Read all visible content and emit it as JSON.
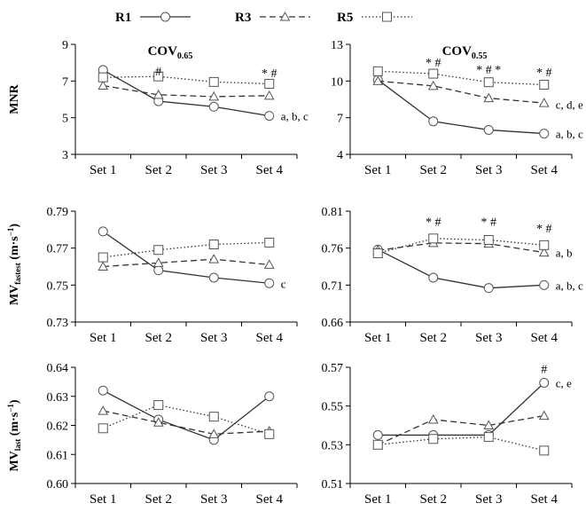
{
  "legend": [
    {
      "label": "R1",
      "style": "solid",
      "marker": "circle"
    },
    {
      "label": "R3",
      "style": "dashed",
      "marker": "triangle"
    },
    {
      "label": "R5",
      "style": "dotted",
      "marker": "square"
    }
  ],
  "column_titles": [
    {
      "main": "COV",
      "sub": "0.65"
    },
    {
      "main": "COV",
      "sub": "0.55"
    }
  ],
  "row_labels": [
    {
      "main": "MNR",
      "sub": "",
      "tail": ""
    },
    {
      "main": "MV",
      "sub": "fastest",
      "tail": " (m·s",
      "sup": "−1",
      "end": ")"
    },
    {
      "main": "MV",
      "sub": "last",
      "tail": " (m·s",
      "sup": "−1",
      "end": ")"
    }
  ],
  "chart_data": [
    {
      "type": "line",
      "id": "mnr-065",
      "row": 0,
      "col": 0,
      "categories": [
        "Set 1",
        "Set 2",
        "Set 3",
        "Set 4"
      ],
      "ylim": [
        3,
        9
      ],
      "yticks": [
        "3",
        "5",
        "7",
        "9"
      ],
      "series": [
        {
          "name": "R1",
          "values": [
            7.6,
            5.9,
            5.6,
            5.1
          ]
        },
        {
          "name": "R3",
          "values": [
            6.75,
            6.25,
            6.15,
            6.2
          ]
        },
        {
          "name": "R5",
          "values": [
            7.2,
            7.25,
            6.95,
            6.85
          ]
        }
      ],
      "annotations": [
        {
          "index": 1,
          "value": 7.3,
          "text": "#"
        },
        {
          "index": 3,
          "value": 7.2,
          "text": "* #"
        }
      ],
      "end_label": {
        "value": 5.1,
        "text": "a, b, c"
      }
    },
    {
      "type": "line",
      "id": "mnr-055",
      "row": 0,
      "col": 1,
      "categories": [
        "Set 1",
        "Set 2",
        "Set 3",
        "Set 4"
      ],
      "ylim": [
        4,
        13
      ],
      "yticks": [
        "4",
        "7",
        "10",
        "13"
      ],
      "series": [
        {
          "name": "R1",
          "values": [
            10.1,
            6.7,
            6.0,
            5.7
          ]
        },
        {
          "name": "R3",
          "values": [
            10.0,
            9.6,
            8.6,
            8.2
          ]
        },
        {
          "name": "R5",
          "values": [
            10.8,
            10.6,
            9.9,
            9.7
          ]
        }
      ],
      "annotations": [
        {
          "index": 1,
          "value": 11.2,
          "text": "* #"
        },
        {
          "index": 2,
          "value": 10.6,
          "text": "* # *"
        },
        {
          "index": 3,
          "value": 10.4,
          "text": "* #"
        }
      ],
      "end_labels": [
        {
          "value": 8.1,
          "text": "c, d, e"
        },
        {
          "value": 5.7,
          "text": "a, b, c"
        }
      ]
    },
    {
      "type": "line",
      "id": "mvfastest-065",
      "row": 1,
      "col": 0,
      "categories": [
        "Set 1",
        "Set 2",
        "Set 3",
        "Set 4"
      ],
      "ylim": [
        0.73,
        0.79
      ],
      "yticks": [
        "0.73",
        "0.75",
        "0.77",
        "0.79"
      ],
      "series": [
        {
          "name": "R1",
          "values": [
            0.779,
            0.758,
            0.754,
            0.751
          ]
        },
        {
          "name": "R3",
          "values": [
            0.76,
            0.762,
            0.764,
            0.761
          ]
        },
        {
          "name": "R5",
          "values": [
            0.765,
            0.769,
            0.772,
            0.773
          ]
        }
      ],
      "annotations": [],
      "end_labels": [
        {
          "value": 0.751,
          "text": "c"
        }
      ]
    },
    {
      "type": "line",
      "id": "mvfastest-055",
      "row": 1,
      "col": 1,
      "categories": [
        "Set 1",
        "Set 2",
        "Set 3",
        "Set 4"
      ],
      "ylim": [
        0.66,
        0.81
      ],
      "yticks": [
        "0.66",
        "0.71",
        "0.76",
        "0.81"
      ],
      "series": [
        {
          "name": "R1",
          "values": [
            0.758,
            0.72,
            0.706,
            0.71
          ]
        },
        {
          "name": "R3",
          "values": [
            0.757,
            0.767,
            0.766,
            0.754
          ]
        },
        {
          "name": "R5",
          "values": [
            0.753,
            0.773,
            0.771,
            0.764
          ]
        }
      ],
      "annotations": [
        {
          "index": 1,
          "value": 0.79,
          "text": "* #"
        },
        {
          "index": 2,
          "value": 0.79,
          "text": "* #"
        },
        {
          "index": 3,
          "value": 0.781,
          "text": "* #"
        }
      ],
      "end_labels": [
        {
          "value": 0.754,
          "text": "a, b"
        },
        {
          "value": 0.71,
          "text": "a, b, c"
        }
      ]
    },
    {
      "type": "line",
      "id": "mvlast-065",
      "row": 2,
      "col": 0,
      "categories": [
        "Set 1",
        "Set 2",
        "Set 3",
        "Set 4"
      ],
      "ylim": [
        0.6,
        0.64
      ],
      "yticks": [
        "0.60",
        "0.61",
        "0.62",
        "0.63",
        "0.64"
      ],
      "series": [
        {
          "name": "R1",
          "values": [
            0.632,
            0.622,
            0.615,
            0.63
          ]
        },
        {
          "name": "R3",
          "values": [
            0.625,
            0.621,
            0.617,
            0.618
          ]
        },
        {
          "name": "R5",
          "values": [
            0.619,
            0.627,
            0.623,
            0.617
          ]
        }
      ],
      "annotations": [],
      "end_labels": []
    },
    {
      "type": "line",
      "id": "mvlast-055",
      "row": 2,
      "col": 1,
      "categories": [
        "Set 1",
        "Set 2",
        "Set 3",
        "Set 4"
      ],
      "ylim": [
        0.51,
        0.57
      ],
      "yticks": [
        "0.51",
        "0.53",
        "0.55",
        "0.57"
      ],
      "series": [
        {
          "name": "R1",
          "values": [
            0.535,
            0.535,
            0.535,
            0.562
          ]
        },
        {
          "name": "R3",
          "values": [
            0.53,
            0.543,
            0.54,
            0.545
          ]
        },
        {
          "name": "R5",
          "values": [
            0.53,
            0.533,
            0.534,
            0.527
          ]
        }
      ],
      "annotations": [
        {
          "index": 3,
          "value": 0.567,
          "text": "#"
        }
      ],
      "end_labels": [
        {
          "value": 0.562,
          "text": "c, e"
        }
      ]
    }
  ]
}
